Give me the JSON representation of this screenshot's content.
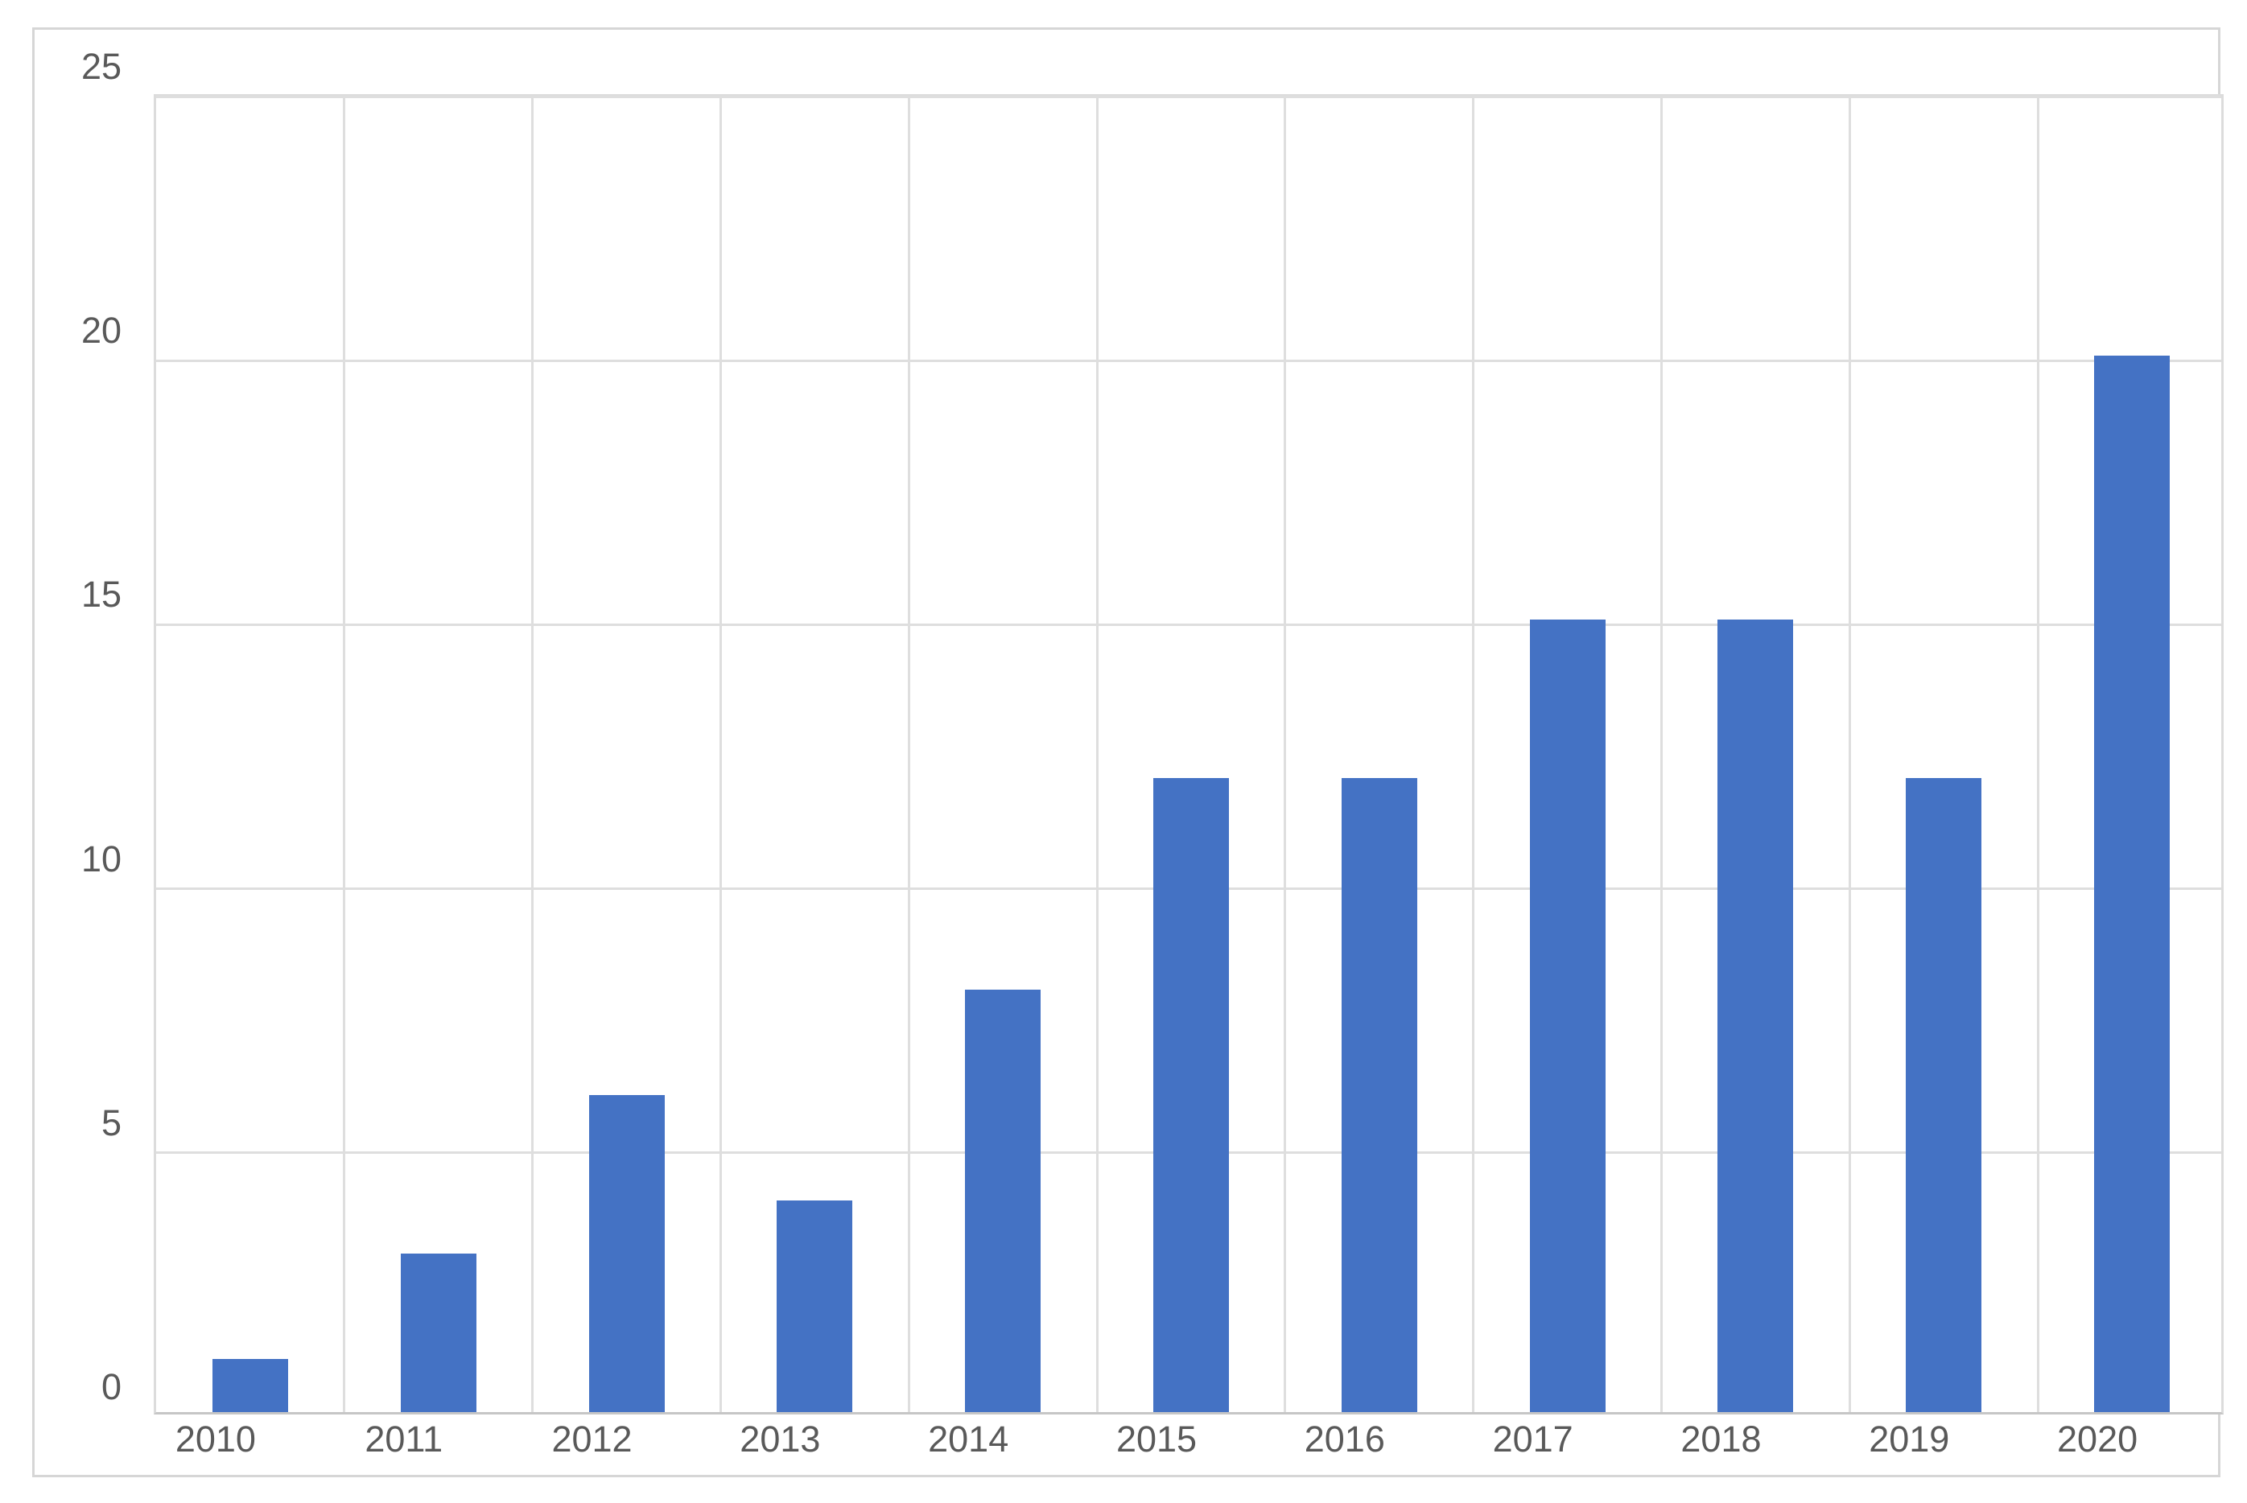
{
  "chart_data": {
    "type": "bar",
    "categories": [
      "2010",
      "2011",
      "2012",
      "2013",
      "2014",
      "2015",
      "2016",
      "2017",
      "2018",
      "2019",
      "2020"
    ],
    "values": [
      1,
      3,
      6,
      4,
      8,
      12,
      12,
      15,
      15,
      12,
      20
    ],
    "title": "",
    "xlabel": "",
    "ylabel": "",
    "ylim": [
      0,
      25
    ],
    "yticks": [
      0,
      5,
      10,
      15,
      20,
      25
    ],
    "grid": true,
    "legend": false,
    "bar_color": "#4472c4",
    "gridline_color": "#dedede",
    "plot_border_color": "#dcdcdc",
    "axis_line_color": "#c6c6c6",
    "frame_border_color": "#d6d6d6",
    "tick_text_color": "#595959",
    "background_color": "#ffffff"
  }
}
